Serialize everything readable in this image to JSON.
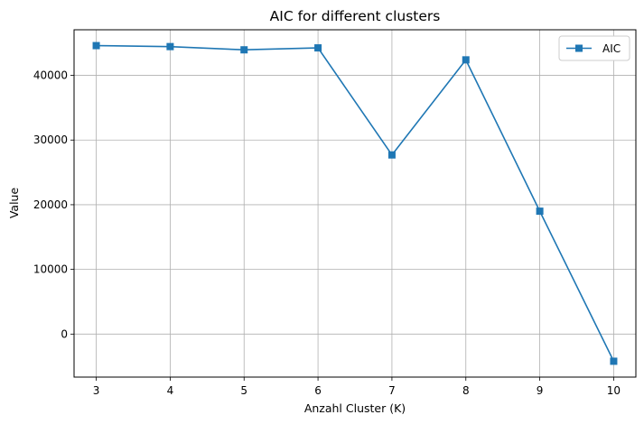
{
  "chart_data": {
    "type": "line",
    "title": "AIC for different clusters",
    "xlabel": "Anzahl Cluster (K)",
    "ylabel": "Value",
    "x": [
      3,
      4,
      5,
      6,
      7,
      8,
      9,
      10
    ],
    "series": [
      {
        "name": "AIC",
        "values": [
          44600,
          44450,
          43950,
          44250,
          27700,
          42400,
          19000,
          -4200
        ],
        "color": "#1f77b4",
        "marker": "square"
      }
    ],
    "xticks": [
      3,
      4,
      5,
      6,
      7,
      8,
      9,
      10
    ],
    "yticks": [
      0,
      10000,
      20000,
      30000,
      40000
    ],
    "xlim": [
      2.7,
      10.3
    ],
    "ylim": [
      -6650,
      47050
    ],
    "grid": true,
    "legend_position": "top-right"
  }
}
